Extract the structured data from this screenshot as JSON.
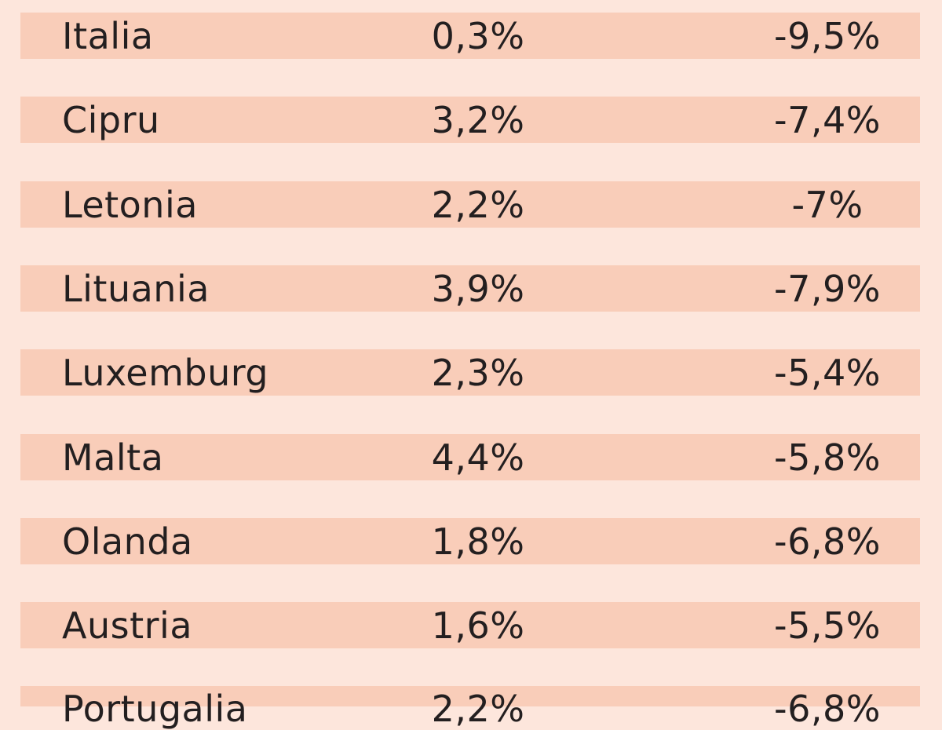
{
  "rows": [
    {
      "country": "Italia",
      "col2": "0,3%",
      "col3": "-9,5%"
    },
    {
      "country": "Cipru",
      "col2": "3,2%",
      "col3": "-7,4%"
    },
    {
      "country": "Letonia",
      "col2": "2,2%",
      "col3": "-7%"
    },
    {
      "country": "Lituania",
      "col2": "3,9%",
      "col3": "-7,9%"
    },
    {
      "country": "Luxemburg",
      "col2": "2,3%",
      "col3": "-5,4%"
    },
    {
      "country": "Malta",
      "col2": "4,4%",
      "col3": "-5,8%"
    },
    {
      "country": "Olanda",
      "col2": "1,8%",
      "col3": "-6,8%"
    },
    {
      "country": "Austria",
      "col2": "1,6%",
      "col3": "-5,5%"
    },
    {
      "country": "Portugalia",
      "col2": "2,2%",
      "col3": "-6,8%"
    }
  ],
  "colors": {
    "background": "#fde6dc",
    "row_band": "#f9cdb9",
    "text": "#231f20"
  }
}
